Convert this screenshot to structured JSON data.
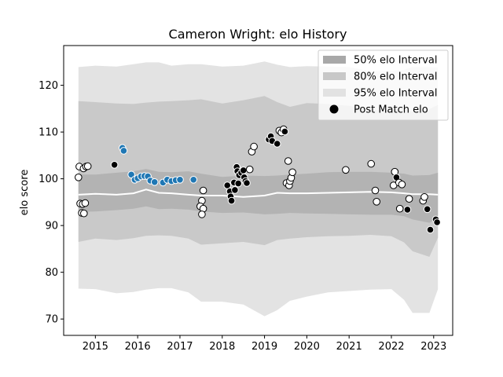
{
  "chart_data": {
    "type": "scatter",
    "title": "Cameron Wright: elo History",
    "xlabel": "",
    "ylabel": "elo score",
    "xlim": [
      2014.25,
      2023.45
    ],
    "ylim": [
      66.5,
      128.5
    ],
    "x_ticks": [
      2015,
      2016,
      2017,
      2018,
      2019,
      2020,
      2021,
      2022,
      2023
    ],
    "x_tick_labels": [
      "2015",
      "2016",
      "2017",
      "2018",
      "2019",
      "2020",
      "2021",
      "2022",
      "2023"
    ],
    "y_ticks": [
      70,
      80,
      90,
      100,
      110,
      120
    ],
    "y_tick_labels": [
      "70",
      "80",
      "90",
      "100",
      "110",
      "120"
    ],
    "grid": false,
    "legend_position": "top-right",
    "legend": [
      {
        "label": "50% elo Interval",
        "color": "#a8a8a8"
      },
      {
        "label": "80% elo Interval",
        "color": "#c8c8c8"
      },
      {
        "label": "95% elo Interval",
        "color": "#e2e2e2"
      },
      {
        "label": "Post Match elo",
        "color": "#000000"
      }
    ],
    "colors": {
      "band50": "#b3b3b3",
      "band80": "#c9c9c9",
      "band95": "#e3e3e3",
      "mean_line": "#ffffff",
      "point_black": "#000000",
      "point_white": "#ffffff",
      "point_blue": "#1f77b4",
      "point_edge": "#ffffff"
    },
    "bands": {
      "x": [
        2014.6,
        2015.0,
        2015.5,
        2015.9,
        2016.2,
        2016.5,
        2016.8,
        2017.2,
        2017.5,
        2018.0,
        2018.5,
        2019.0,
        2019.3,
        2019.6,
        2020.0,
        2020.5,
        2021.0,
        2021.5,
        2022.0,
        2022.3,
        2022.5,
        2022.9,
        2023.1
      ],
      "mean": [
        96.6,
        96.8,
        96.6,
        96.9,
        97.7,
        97.0,
        96.9,
        96.6,
        96.4,
        96.4,
        96.1,
        96.4,
        97.0,
        96.9,
        96.9,
        97.0,
        97.1,
        97.2,
        97.1,
        96.9,
        96.7,
        96.7,
        96.6
      ],
      "lo50": [
        92.9,
        93.0,
        93.3,
        93.6,
        94.1,
        93.5,
        93.6,
        93.4,
        93.0,
        92.7,
        92.8,
        92.4,
        92.5,
        92.7,
        92.6,
        92.5,
        92.4,
        92.3,
        92.3,
        92.0,
        91.3,
        90.6,
        91.5
      ],
      "hi50": [
        100.9,
        100.9,
        101.3,
        101.6,
        102.1,
        101.5,
        101.4,
        101.6,
        101.1,
        100.4,
        100.7,
        100.6,
        100.7,
        100.9,
        101.1,
        101.4,
        101.5,
        101.5,
        101.3,
        101.1,
        100.7,
        100.8,
        101.3
      ],
      "lo80": [
        86.5,
        87.2,
        86.9,
        87.3,
        87.8,
        87.9,
        87.8,
        87.2,
        85.9,
        86.2,
        86.5,
        85.8,
        86.9,
        87.2,
        87.5,
        87.7,
        87.8,
        88.0,
        87.7,
        86.4,
        84.5,
        83.3,
        87.4
      ],
      "hi80": [
        116.6,
        116.4,
        116.1,
        116.0,
        116.3,
        116.5,
        116.6,
        116.8,
        117.0,
        116.1,
        116.8,
        117.7,
        116.4,
        115.4,
        116.2,
        116.0,
        115.6,
        114.8,
        114.6,
        115.1,
        114.3,
        114.9,
        115.8
      ],
      "lo95": [
        76.5,
        76.4,
        75.5,
        75.8,
        76.3,
        76.6,
        76.6,
        75.7,
        73.7,
        73.7,
        73.1,
        70.6,
        71.9,
        73.9,
        74.8,
        75.7,
        76.0,
        76.3,
        76.4,
        74.1,
        71.3,
        71.3,
        76.4
      ],
      "hi95": [
        123.9,
        124.2,
        124.0,
        124.5,
        124.9,
        124.9,
        124.2,
        124.5,
        124.5,
        124.0,
        124.2,
        125.1,
        124.4,
        123.9,
        124.1,
        124.0,
        123.9,
        123.0,
        123.1,
        123.3,
        123.9,
        123.9,
        123.8
      ]
    },
    "series": [
      {
        "name": "Post Match elo",
        "points": [
          {
            "x": 2014.62,
            "y": 102.6,
            "c": "white"
          },
          {
            "x": 2014.6,
            "y": 100.3,
            "c": "white"
          },
          {
            "x": 2014.72,
            "y": 102.2,
            "c": "white"
          },
          {
            "x": 2014.78,
            "y": 102.6,
            "c": "white"
          },
          {
            "x": 2014.82,
            "y": 102.7,
            "c": "white"
          },
          {
            "x": 2014.64,
            "y": 94.7,
            "c": "white"
          },
          {
            "x": 2014.7,
            "y": 94.6,
            "c": "white"
          },
          {
            "x": 2014.76,
            "y": 94.8,
            "c": "white"
          },
          {
            "x": 2014.68,
            "y": 92.7,
            "c": "white"
          },
          {
            "x": 2014.73,
            "y": 92.6,
            "c": "white"
          },
          {
            "x": 2015.45,
            "y": 103.0,
            "c": "black"
          },
          {
            "x": 2015.64,
            "y": 106.6,
            "c": "blue"
          },
          {
            "x": 2015.67,
            "y": 106.0,
            "c": "blue"
          },
          {
            "x": 2015.85,
            "y": 100.9,
            "c": "blue"
          },
          {
            "x": 2015.93,
            "y": 99.8,
            "c": "blue"
          },
          {
            "x": 2016.0,
            "y": 100.1,
            "c": "blue"
          },
          {
            "x": 2016.08,
            "y": 100.5,
            "c": "blue"
          },
          {
            "x": 2016.16,
            "y": 100.6,
            "c": "blue"
          },
          {
            "x": 2016.24,
            "y": 100.5,
            "c": "blue"
          },
          {
            "x": 2016.3,
            "y": 99.6,
            "c": "blue"
          },
          {
            "x": 2016.4,
            "y": 99.3,
            "c": "blue"
          },
          {
            "x": 2016.6,
            "y": 99.2,
            "c": "blue"
          },
          {
            "x": 2016.7,
            "y": 99.8,
            "c": "blue"
          },
          {
            "x": 2016.8,
            "y": 99.5,
            "c": "blue"
          },
          {
            "x": 2016.9,
            "y": 99.7,
            "c": "blue"
          },
          {
            "x": 2017.0,
            "y": 99.8,
            "c": "blue"
          },
          {
            "x": 2017.32,
            "y": 99.8,
            "c": "blue"
          },
          {
            "x": 2017.55,
            "y": 97.5,
            "c": "white"
          },
          {
            "x": 2017.52,
            "y": 95.3,
            "c": "white"
          },
          {
            "x": 2017.48,
            "y": 94.1,
            "c": "white"
          },
          {
            "x": 2017.55,
            "y": 93.6,
            "c": "white"
          },
          {
            "x": 2017.52,
            "y": 92.4,
            "c": "white"
          },
          {
            "x": 2018.12,
            "y": 98.6,
            "c": "black"
          },
          {
            "x": 2018.18,
            "y": 97.3,
            "c": "black"
          },
          {
            "x": 2018.2,
            "y": 96.2,
            "c": "black"
          },
          {
            "x": 2018.22,
            "y": 95.3,
            "c": "black"
          },
          {
            "x": 2018.28,
            "y": 99.2,
            "c": "black"
          },
          {
            "x": 2018.3,
            "y": 97.6,
            "c": "black"
          },
          {
            "x": 2018.34,
            "y": 102.5,
            "c": "black"
          },
          {
            "x": 2018.36,
            "y": 101.6,
            "c": "black"
          },
          {
            "x": 2018.4,
            "y": 100.8,
            "c": "black"
          },
          {
            "x": 2018.38,
            "y": 99.0,
            "c": "black"
          },
          {
            "x": 2018.45,
            "y": 101.3,
            "c": "black"
          },
          {
            "x": 2018.5,
            "y": 101.8,
            "c": "black"
          },
          {
            "x": 2018.52,
            "y": 100.3,
            "c": "black"
          },
          {
            "x": 2018.55,
            "y": 99.5,
            "c": "black"
          },
          {
            "x": 2018.58,
            "y": 99.1,
            "c": "black"
          },
          {
            "x": 2018.65,
            "y": 102.0,
            "c": "white"
          },
          {
            "x": 2018.7,
            "y": 105.8,
            "c": "white"
          },
          {
            "x": 2018.75,
            "y": 106.9,
            "c": "white"
          },
          {
            "x": 2019.1,
            "y": 108.4,
            "c": "black"
          },
          {
            "x": 2019.15,
            "y": 109.1,
            "c": "black"
          },
          {
            "x": 2019.18,
            "y": 108.1,
            "c": "black"
          },
          {
            "x": 2019.3,
            "y": 107.5,
            "c": "black"
          },
          {
            "x": 2019.35,
            "y": 110.3,
            "c": "white"
          },
          {
            "x": 2019.4,
            "y": 109.9,
            "c": "white"
          },
          {
            "x": 2019.45,
            "y": 110.6,
            "c": "white"
          },
          {
            "x": 2019.48,
            "y": 110.1,
            "c": "black"
          },
          {
            "x": 2019.52,
            "y": 99.1,
            "c": "white"
          },
          {
            "x": 2019.56,
            "y": 103.8,
            "c": "white"
          },
          {
            "x": 2019.58,
            "y": 98.6,
            "c": "white"
          },
          {
            "x": 2019.6,
            "y": 99.5,
            "c": "white"
          },
          {
            "x": 2019.63,
            "y": 100.2,
            "c": "white"
          },
          {
            "x": 2019.66,
            "y": 101.4,
            "c": "white"
          },
          {
            "x": 2020.92,
            "y": 101.9,
            "c": "white"
          },
          {
            "x": 2021.52,
            "y": 103.2,
            "c": "white"
          },
          {
            "x": 2021.62,
            "y": 97.5,
            "c": "white"
          },
          {
            "x": 2021.65,
            "y": 95.1,
            "c": "white"
          },
          {
            "x": 2022.05,
            "y": 98.6,
            "c": "white"
          },
          {
            "x": 2022.08,
            "y": 101.5,
            "c": "white"
          },
          {
            "x": 2022.12,
            "y": 100.3,
            "c": "black"
          },
          {
            "x": 2022.18,
            "y": 99.2,
            "c": "white"
          },
          {
            "x": 2022.2,
            "y": 93.6,
            "c": "white"
          },
          {
            "x": 2022.25,
            "y": 98.8,
            "c": "white"
          },
          {
            "x": 2022.38,
            "y": 93.4,
            "c": "black"
          },
          {
            "x": 2022.42,
            "y": 95.7,
            "c": "white"
          },
          {
            "x": 2022.75,
            "y": 95.3,
            "c": "white"
          },
          {
            "x": 2022.78,
            "y": 96.1,
            "c": "white"
          },
          {
            "x": 2022.85,
            "y": 93.5,
            "c": "black"
          },
          {
            "x": 2022.92,
            "y": 89.1,
            "c": "black"
          },
          {
            "x": 2023.05,
            "y": 91.3,
            "c": "black"
          },
          {
            "x": 2023.08,
            "y": 90.7,
            "c": "black"
          }
        ]
      }
    ]
  }
}
